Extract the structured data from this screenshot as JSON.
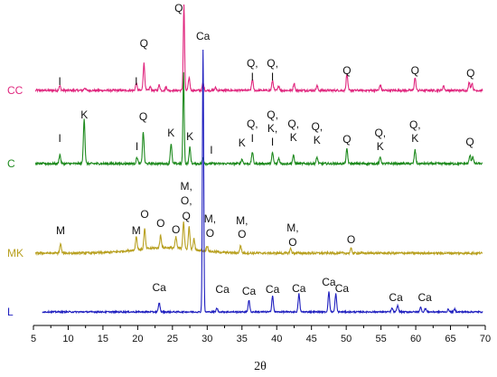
{
  "chart_data": {
    "type": "line",
    "title": "",
    "xlabel": "2θ",
    "ylabel": "",
    "xlim": [
      5,
      70
    ],
    "xticks": [
      5,
      10,
      15,
      20,
      25,
      30,
      35,
      40,
      45,
      50,
      55,
      60,
      65,
      70
    ],
    "grid": false,
    "legend": "none",
    "series": [
      {
        "name": "CC",
        "color": "#e0287f",
        "peaks": [
          [
            8.8,
            5
          ],
          [
            12.4,
            3
          ],
          [
            19.8,
            8
          ],
          [
            20.9,
            30
          ],
          [
            21.8,
            4
          ],
          [
            23.1,
            6
          ],
          [
            24.1,
            4
          ],
          [
            26.65,
            95
          ],
          [
            27.4,
            14
          ],
          [
            29.4,
            8
          ],
          [
            31.2,
            3
          ],
          [
            36.5,
            12
          ],
          [
            39.4,
            11
          ],
          [
            40.3,
            5
          ],
          [
            42.5,
            8
          ],
          [
            45.8,
            5
          ],
          [
            50.1,
            18
          ],
          [
            54.9,
            6
          ],
          [
            59.9,
            14
          ],
          [
            64.0,
            5
          ],
          [
            67.7,
            9
          ],
          [
            68.1,
            8
          ]
        ],
        "annotations": [
          {
            "text": "Q",
            "x": 26.65
          },
          {
            "text": "Q",
            "x": 20.9
          },
          {
            "text": "I",
            "x": 8.8
          },
          {
            "text": "I",
            "x": 19.8
          },
          {
            "text": "Q,",
            "x": 36.5
          },
          {
            "text": "I",
            "x": 36.5
          },
          {
            "text": "Q,",
            "x": 39.4
          },
          {
            "text": "I",
            "x": 39.4
          },
          {
            "text": "Q",
            "x": 50.1
          },
          {
            "text": "Q",
            "x": 59.9
          },
          {
            "text": "Q",
            "x": 67.9
          }
        ]
      },
      {
        "name": "C",
        "color": "#1e8a1e",
        "peaks": [
          [
            8.8,
            10
          ],
          [
            12.3,
            50
          ],
          [
            19.9,
            7
          ],
          [
            20.8,
            35
          ],
          [
            24.8,
            22
          ],
          [
            26.6,
            100
          ],
          [
            27.5,
            18
          ],
          [
            29.4,
            6
          ],
          [
            35.0,
            5
          ],
          [
            36.5,
            13
          ],
          [
            39.4,
            12
          ],
          [
            40.3,
            6
          ],
          [
            42.4,
            9
          ],
          [
            45.8,
            7
          ],
          [
            50.1,
            16
          ],
          [
            54.9,
            7
          ],
          [
            59.9,
            15
          ],
          [
            67.8,
            9
          ],
          [
            68.2,
            8
          ]
        ],
        "annotations": [
          {
            "text": "K",
            "x": 12.3
          },
          {
            "text": "Q",
            "x": 20.8
          },
          {
            "text": "I",
            "x": 8.8
          },
          {
            "text": "I",
            "x": 19.9
          },
          {
            "text": "K",
            "x": 24.8
          },
          {
            "text": "K",
            "x": 27.5
          },
          {
            "text": "I",
            "x": 30.6
          },
          {
            "text": "K",
            "x": 35.0
          },
          {
            "text": "Q,",
            "x": 36.5
          },
          {
            "text": "I",
            "x": 36.5
          },
          {
            "text": "Q,",
            "x": 39.4
          },
          {
            "text": "K,",
            "x": 39.4
          },
          {
            "text": "I",
            "x": 39.4
          },
          {
            "text": "Q,",
            "x": 42.4
          },
          {
            "text": "K",
            "x": 42.4
          },
          {
            "text": "Q,",
            "x": 45.8
          },
          {
            "text": "K",
            "x": 45.8
          },
          {
            "text": "Q",
            "x": 50.1
          },
          {
            "text": "Q,",
            "x": 54.9
          },
          {
            "text": "K",
            "x": 54.9
          },
          {
            "text": "Q,",
            "x": 59.9
          },
          {
            "text": "K",
            "x": 59.9
          },
          {
            "text": "Q",
            "x": 67.8
          }
        ]
      },
      {
        "name": "MK",
        "color": "#b8a020",
        "peaks": [
          [
            8.9,
            10
          ],
          [
            19.8,
            15
          ],
          [
            21.0,
            22
          ],
          [
            23.3,
            14
          ],
          [
            25.5,
            12
          ],
          [
            26.6,
            30
          ],
          [
            27.4,
            25
          ],
          [
            28.1,
            12
          ],
          [
            30.0,
            6
          ],
          [
            34.8,
            8
          ],
          [
            42.0,
            5
          ],
          [
            50.7,
            5
          ]
        ],
        "annotations": [
          {
            "text": "M",
            "x": 8.9
          },
          {
            "text": "M",
            "x": 19.8
          },
          {
            "text": "O",
            "x": 21.0
          },
          {
            "text": "O",
            "x": 23.3
          },
          {
            "text": "O",
            "x": 25.5
          },
          {
            "text": "M,",
            "x": 27.0
          },
          {
            "text": "O,",
            "x": 27.0
          },
          {
            "text": "Q",
            "x": 27.0
          },
          {
            "text": "M,",
            "x": 30.4
          },
          {
            "text": "O",
            "x": 30.4
          },
          {
            "text": "M,",
            "x": 35.0
          },
          {
            "text": "O",
            "x": 35.0
          },
          {
            "text": "M,",
            "x": 42.3
          },
          {
            "text": "O",
            "x": 42.3
          },
          {
            "text": "O",
            "x": 50.7
          }
        ]
      },
      {
        "name": "L",
        "color": "#1f1fbf",
        "peaks": [
          [
            23.1,
            10
          ],
          [
            29.4,
            290
          ],
          [
            31.4,
            4
          ],
          [
            36.0,
            13
          ],
          [
            39.4,
            18
          ],
          [
            43.2,
            20
          ],
          [
            47.5,
            22
          ],
          [
            48.5,
            20
          ],
          [
            56.6,
            4
          ],
          [
            57.4,
            7
          ],
          [
            60.7,
            5
          ],
          [
            61.4,
            4
          ],
          [
            64.7,
            3
          ],
          [
            65.6,
            3
          ]
        ],
        "annotations": [
          {
            "text": "Ca",
            "x": 29.4
          },
          {
            "text": "Ca",
            "x": 23.1
          },
          {
            "text": "Ca",
            "x": 31.4
          },
          {
            "text": "Ca",
            "x": 36.0
          },
          {
            "text": "Ca",
            "x": 39.4
          },
          {
            "text": "Ca",
            "x": 43.2
          },
          {
            "text": "Ca",
            "x": 47.5
          },
          {
            "text": "Ca",
            "x": 48.6
          },
          {
            "text": "Ca",
            "x": 57.4
          },
          {
            "text": "Ca",
            "x": 60.8
          }
        ]
      }
    ]
  }
}
